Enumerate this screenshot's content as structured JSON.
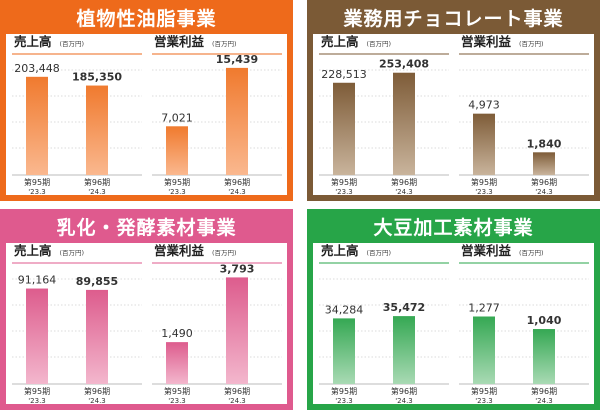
{
  "panels": [
    {
      "title": "植物性油脂事業",
      "color": "#ee6a1b",
      "bar_top": "#f07a2e",
      "bar_bottom": "#fab88f",
      "charts": [
        {
          "type": "bar",
          "title": "売上高",
          "unit": "(百万円)",
          "categories": [
            "第95期",
            "第96期"
          ],
          "periods": [
            "'23.3",
            "'24.3"
          ],
          "values": [
            203448,
            185350
          ],
          "labels": [
            "203,448",
            "185,350"
          ],
          "ylim": [
            0,
            230000
          ]
        },
        {
          "type": "bar",
          "title": "営業利益",
          "unit": "(百万円)",
          "categories": [
            "第95期",
            "第96期"
          ],
          "periods": [
            "'23.3",
            "'24.3"
          ],
          "values": [
            7021,
            15439
          ],
          "labels": [
            "7,021",
            "15,439"
          ],
          "ylim": [
            0,
            16000
          ]
        }
      ]
    },
    {
      "title": "業務用チョコレート事業",
      "color": "#7b5a36",
      "bar_top": "#7e5c38",
      "bar_bottom": "#c9b49c",
      "charts": [
        {
          "type": "bar",
          "title": "売上高",
          "unit": "(百万円)",
          "categories": [
            "第95期",
            "第96期"
          ],
          "periods": [
            "'23.3",
            "'24.3"
          ],
          "values": [
            228513,
            253408
          ],
          "labels": [
            "228,513",
            "253,408"
          ],
          "ylim": [
            0,
            275000
          ]
        },
        {
          "type": "bar",
          "title": "営業利益",
          "unit": "(百万円)",
          "categories": [
            "第95期",
            "第96期"
          ],
          "periods": [
            "'23.3",
            "'24.3"
          ],
          "values": [
            4973,
            1840
          ],
          "labels": [
            "4,973",
            "1,840"
          ],
          "ylim": [
            0,
            9000
          ]
        }
      ]
    },
    {
      "title": "乳化・発酵素材事業",
      "color": "#df5a8e",
      "bar_top": "#dd5c8d",
      "bar_bottom": "#f3b7cd",
      "charts": [
        {
          "type": "bar",
          "title": "売上高",
          "unit": "(百万円)",
          "categories": [
            "第95期",
            "第96期"
          ],
          "periods": [
            "'23.3",
            "'24.3"
          ],
          "values": [
            91164,
            89855
          ],
          "labels": [
            "91,164",
            "89,855"
          ],
          "ylim": [
            0,
            106000
          ]
        },
        {
          "type": "bar",
          "title": "営業利益",
          "unit": "(百万円)",
          "categories": [
            "第95期",
            "第96期"
          ],
          "periods": [
            "'23.3",
            "'24.3"
          ],
          "values": [
            1490,
            3793
          ],
          "labels": [
            "1,490",
            "3,793"
          ],
          "ylim": [
            0,
            3950
          ]
        }
      ]
    },
    {
      "title": "大豆加工素材事業",
      "color": "#27a548",
      "bar_top": "#35a853",
      "bar_bottom": "#a9dab4",
      "charts": [
        {
          "type": "bar",
          "title": "売上高",
          "unit": "(百万円)",
          "categories": [
            "第95期",
            "第96期"
          ],
          "periods": [
            "'23.3",
            "'24.3"
          ],
          "values": [
            34284,
            35472
          ],
          "labels": [
            "34,284",
            "35,472"
          ],
          "ylim": [
            0,
            58000
          ]
        },
        {
          "type": "bar",
          "title": "営業利益",
          "unit": "(百万円)",
          "categories": [
            "第95期",
            "第96期"
          ],
          "periods": [
            "'23.3",
            "'24.3"
          ],
          "values": [
            1277,
            1040
          ],
          "labels": [
            "1,277",
            "1,040"
          ],
          "ylim": [
            0,
            2100
          ]
        }
      ]
    }
  ],
  "chart_data": [
    {
      "type": "bar",
      "title": "植物性油脂事業 売上高",
      "unit": "(百万円)",
      "categories": [
        "第95期 '23.3",
        "第96期 '24.3"
      ],
      "values": [
        203448,
        185350
      ]
    },
    {
      "type": "bar",
      "title": "植物性油脂事業 営業利益",
      "unit": "(百万円)",
      "categories": [
        "第95期 '23.3",
        "第96期 '24.3"
      ],
      "values": [
        7021,
        15439
      ]
    },
    {
      "type": "bar",
      "title": "業務用チョコレート事業 売上高",
      "unit": "(百万円)",
      "categories": [
        "第95期 '23.3",
        "第96期 '24.3"
      ],
      "values": [
        228513,
        253408
      ]
    },
    {
      "type": "bar",
      "title": "業務用チョコレート事業 営業利益",
      "unit": "(百万円)",
      "categories": [
        "第95期 '23.3",
        "第96期 '24.3"
      ],
      "values": [
        4973,
        1840
      ]
    },
    {
      "type": "bar",
      "title": "乳化・発酵素材事業 売上高",
      "unit": "(百万円)",
      "categories": [
        "第95期 '23.3",
        "第96期 '24.3"
      ],
      "values": [
        91164,
        89855
      ]
    },
    {
      "type": "bar",
      "title": "乳化・発酵素材事業 営業利益",
      "unit": "(百万円)",
      "categories": [
        "第95期 '23.3",
        "第96期 '24.3"
      ],
      "values": [
        1490,
        3793
      ]
    },
    {
      "type": "bar",
      "title": "大豆加工素材事業 売上高",
      "unit": "(百万円)",
      "categories": [
        "第95期 '23.3",
        "第96期 '24.3"
      ],
      "values": [
        34284,
        35472
      ]
    },
    {
      "type": "bar",
      "title": "大豆加工素材事業 営業利益",
      "unit": "(百万円)",
      "categories": [
        "第95期 '23.3",
        "第96期 '24.3"
      ],
      "values": [
        1277,
        1040
      ]
    }
  ]
}
